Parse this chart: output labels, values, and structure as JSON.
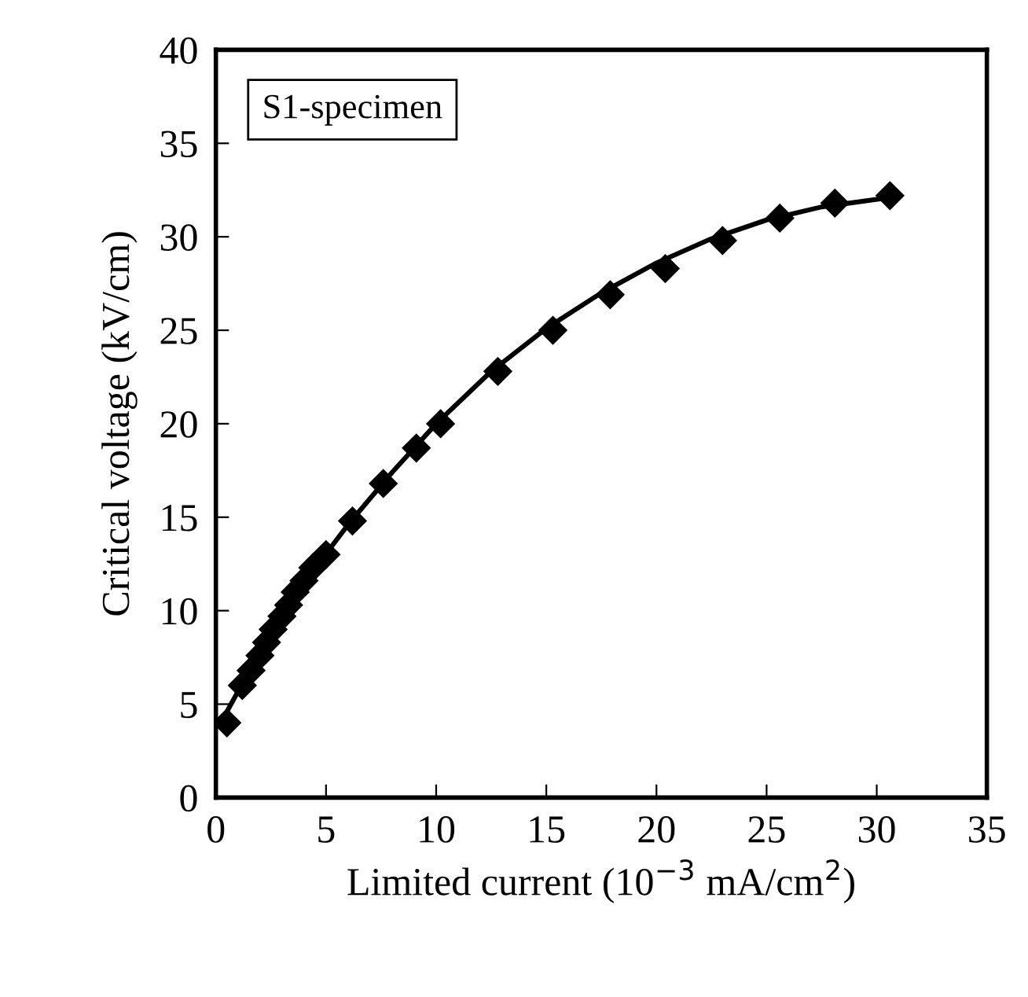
{
  "chart_data": {
    "type": "scatter",
    "xlabel": "Limited current (10$^{−3}$ mA/cm$^{2}$)",
    "ylabel": "Critical voltage (kV/cm)",
    "annotations": [
      "S1-specimen"
    ],
    "series": [
      {
        "color": "#000000",
        "marker": "diamond",
        "x": [
          0.5,
          1.2,
          1.6,
          2.0,
          2.3,
          2.6,
          3.0,
          3.3,
          3.6,
          4.0,
          4.4,
          5.0,
          6.2,
          7.6,
          9.1,
          10.2,
          12.8,
          15.3,
          17.9,
          20.4,
          23.0,
          25.6,
          28.1,
          30.6
        ],
        "values": [
          4.0,
          6.0,
          6.8,
          7.6,
          8.3,
          9.0,
          9.7,
          10.3,
          11.0,
          11.6,
          12.3,
          13.0,
          14.8,
          16.8,
          18.7,
          20.0,
          22.8,
          25.0,
          26.9,
          28.3,
          29.8,
          31.0,
          31.8,
          32.2
        ]
      },
      {
        "type": "line",
        "color": "#000000",
        "line_style": "solid",
        "x": [
          0.5,
          2,
          4,
          6,
          8,
          10,
          12.5,
          15,
          17.5,
          20,
          22.5,
          25,
          27.5,
          30.6
        ],
        "values": [
          4.6,
          7.8,
          11.5,
          14.6,
          17.4,
          20.0,
          22.8,
          25.1,
          27.0,
          28.6,
          29.9,
          30.9,
          31.6,
          32.1
        ]
      }
    ],
    "xlim": [
      0,
      35
    ],
    "xticks": [
      0,
      5,
      10,
      15,
      20,
      25,
      30,
      35
    ],
    "ylim": [
      0,
      40
    ],
    "yticks": [
      0,
      5,
      10,
      15,
      20,
      25,
      30,
      35,
      40
    ]
  }
}
